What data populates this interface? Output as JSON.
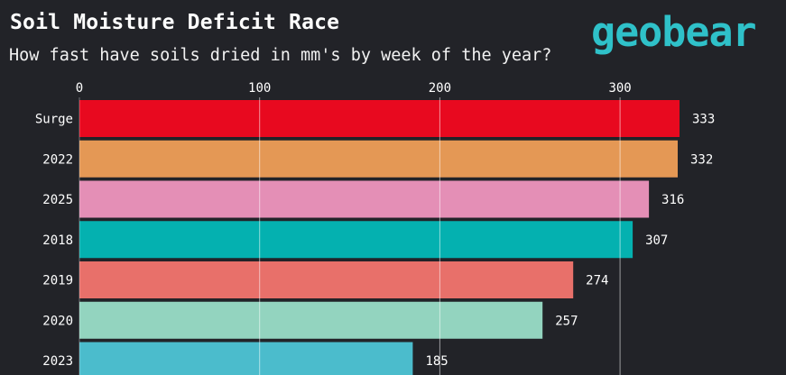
{
  "header": {
    "title": "Soil Moisture Deficit Race",
    "subtitle": "How fast have soils dried in mm's by week of the year?",
    "logo_text": "geobear"
  },
  "chart_data": {
    "type": "bar",
    "orientation": "horizontal",
    "title": "Soil Moisture Deficit Race",
    "subtitle": "How fast have soils dried in mm's by week of the year?",
    "xlabel": "",
    "ylabel": "",
    "xlim": [
      0,
      335
    ],
    "x_ticks": [
      0,
      100,
      200,
      300
    ],
    "grid": true,
    "categories": [
      "Surge",
      "2022",
      "2025",
      "2018",
      "2019",
      "2020",
      "2023"
    ],
    "values": [
      333,
      332,
      316,
      307,
      274,
      257,
      185
    ],
    "colors": [
      "#e8091f",
      "#e49855",
      "#e48fb6",
      "#04b1b0",
      "#e8706a",
      "#93d4bf",
      "#4bbccc"
    ]
  },
  "theme": {
    "background": "#222328",
    "logo_color": "#2fc1c9"
  }
}
